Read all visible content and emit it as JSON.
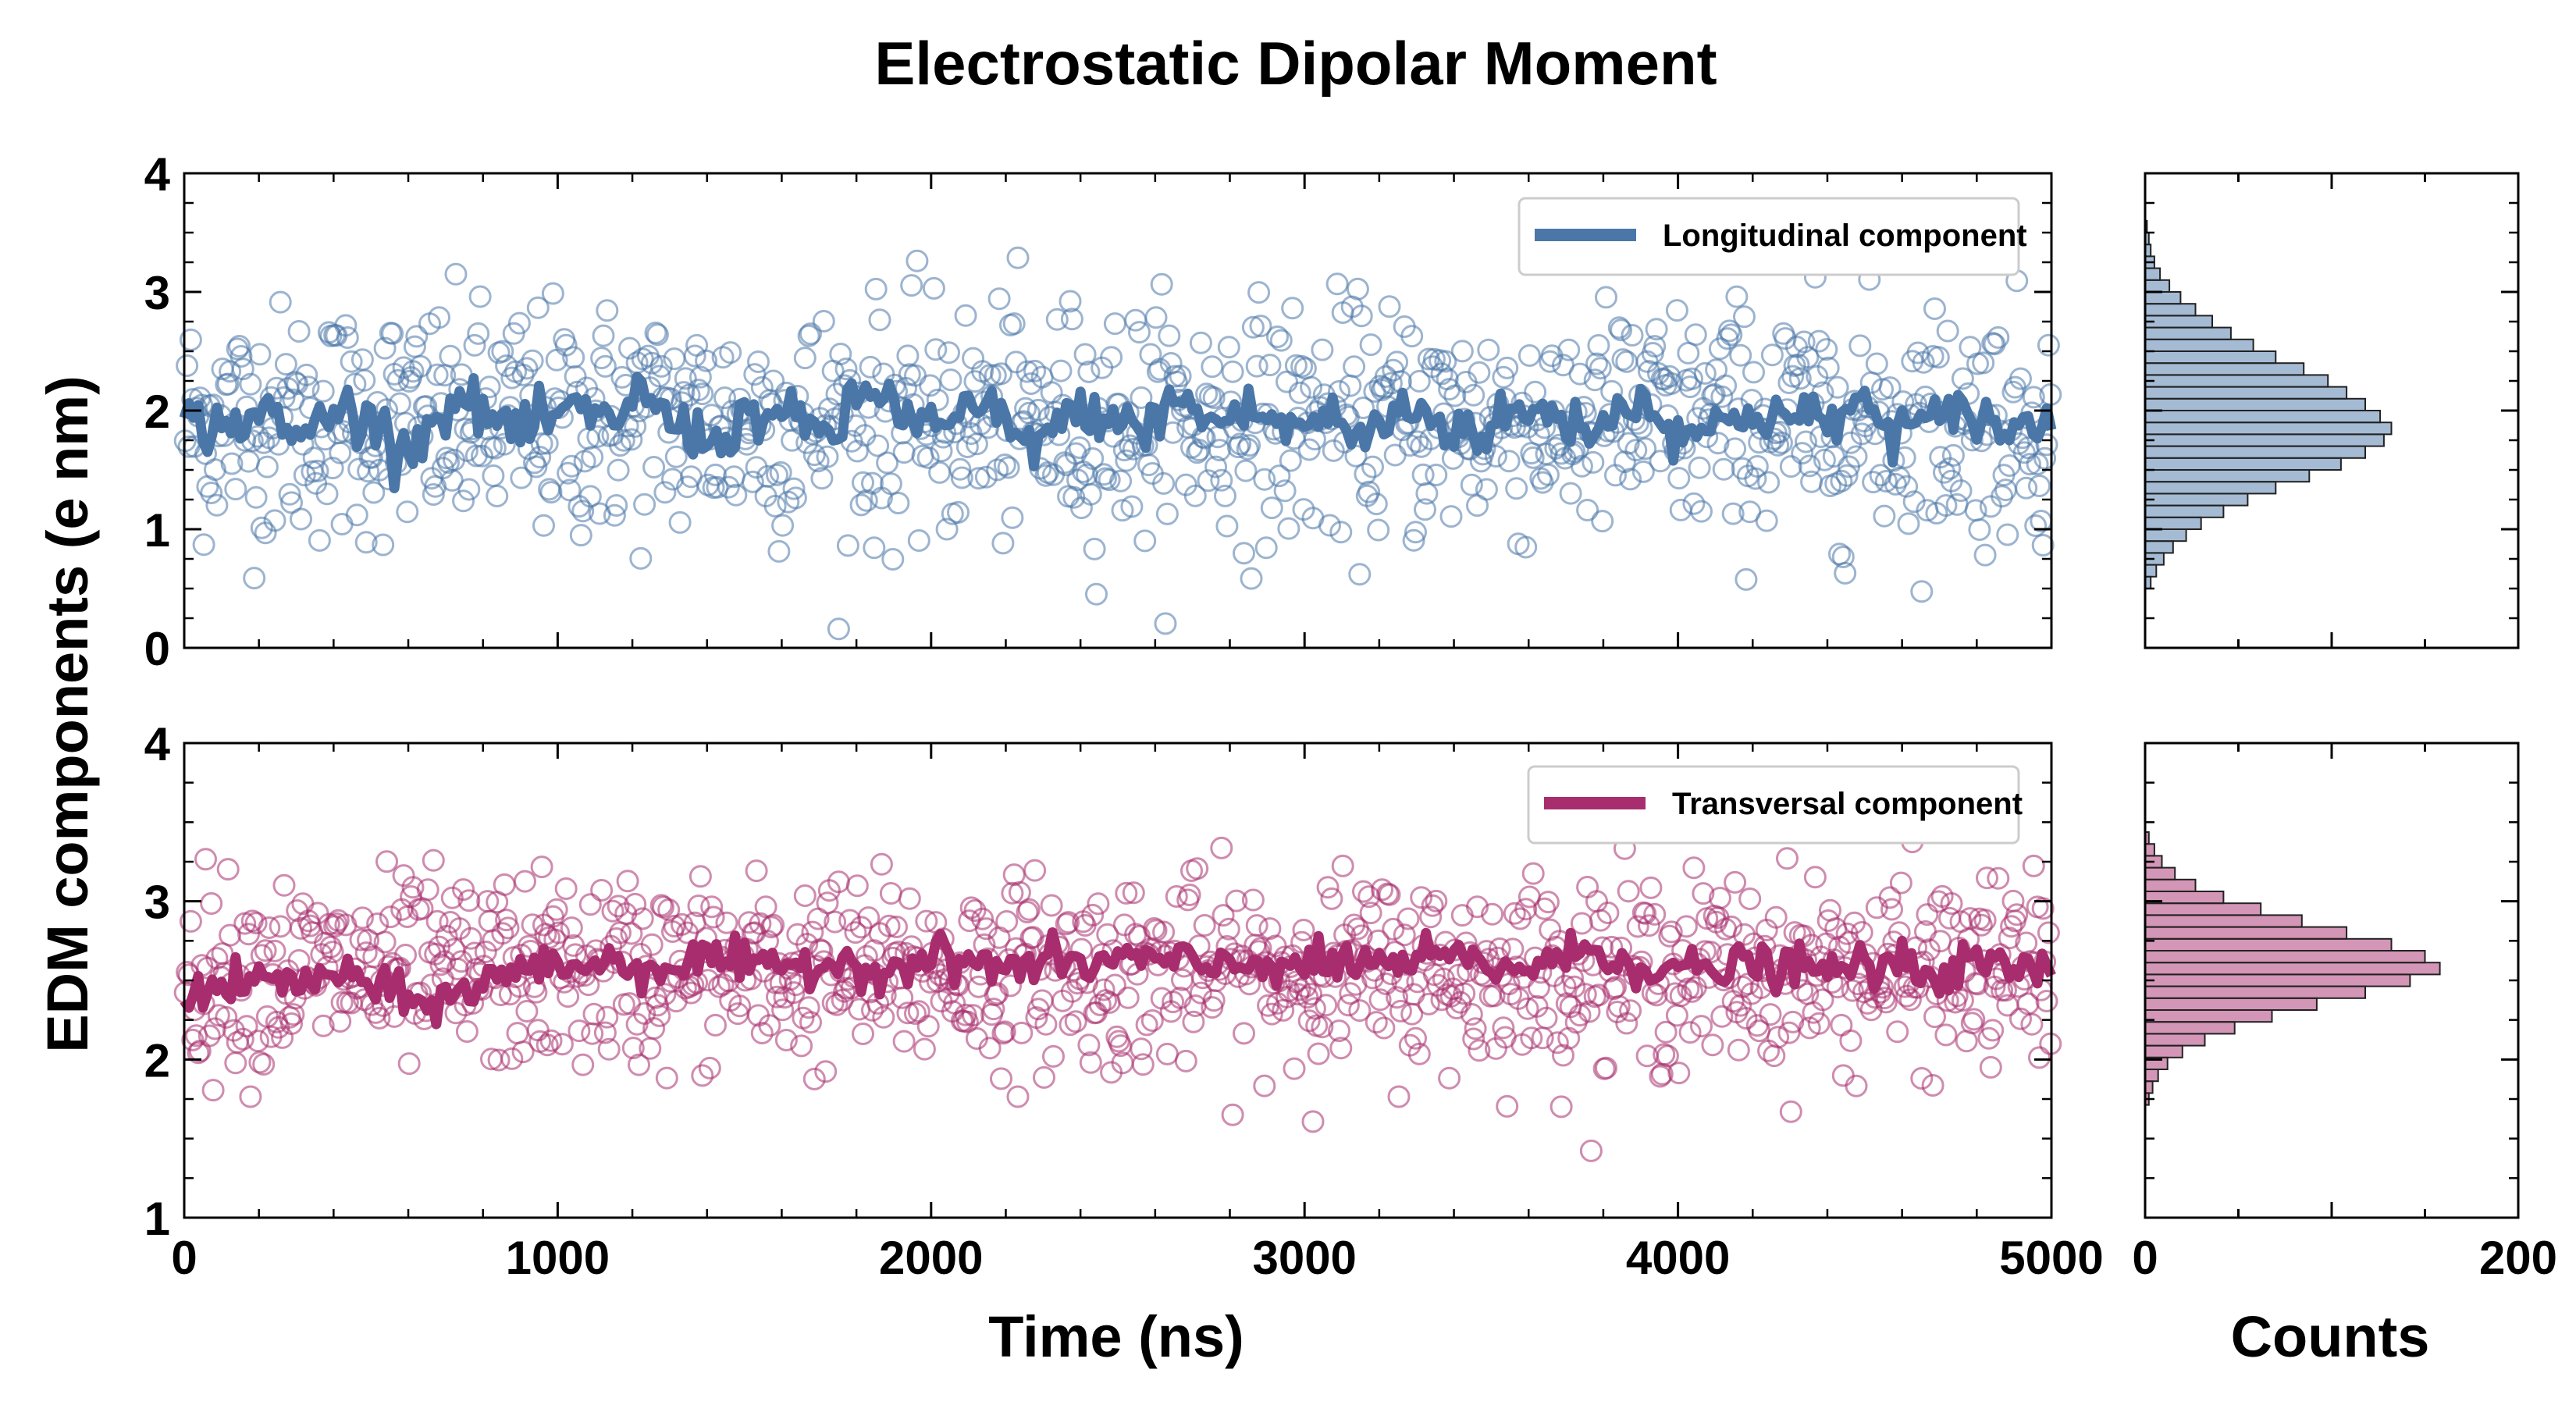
{
  "chart_data": {
    "type": "scatter",
    "title": "Electrostatic Dipolar Moment",
    "ylabel": "EDM components (e nm)",
    "xlabel": "Time (ns)",
    "hist_xlabel": "Counts",
    "xlim": [
      0,
      5000
    ],
    "xticks": [
      "0",
      "1000",
      "2000",
      "3000",
      "4000",
      "5000"
    ],
    "hist_xlim": [
      0,
      200
    ],
    "hist_xticks": [
      "0",
      "200"
    ],
    "grid": false,
    "legend_placement": "top-right",
    "panels": [
      {
        "series_name": "Longitudinal component",
        "color": "#4a77a8",
        "ylim": [
          0,
          4
        ],
        "yticks": [
          "0",
          "1",
          "2",
          "3",
          "4"
        ],
        "mean": 1.9,
        "spread": 0.5,
        "smooth_mean": [
          1.92,
          1.85,
          2.0,
          1.75,
          2.05,
          1.88,
          1.7,
          2.1,
          1.95,
          1.8,
          2.0,
          1.9,
          2.15,
          1.85,
          1.75,
          2.0,
          1.9,
          1.8,
          2.2,
          1.95,
          1.85,
          2.05,
          1.7,
          1.9,
          2.0,
          1.8,
          2.1,
          1.9,
          2.0,
          1.85,
          1.95,
          1.75,
          2.05,
          1.9,
          1.8,
          2.0,
          1.95,
          1.85,
          2.1,
          1.9,
          1.8,
          2.0,
          1.95,
          1.9,
          2.05,
          1.85,
          1.9,
          2.0,
          1.8,
          1.95
        ],
        "histogram": {
          "bin_centers": [
            0.55,
            0.65,
            0.75,
            0.85,
            0.95,
            1.05,
            1.15,
            1.25,
            1.35,
            1.45,
            1.55,
            1.65,
            1.75,
            1.85,
            1.95,
            2.05,
            2.15,
            2.25,
            2.35,
            2.45,
            2.55,
            2.65,
            2.75,
            2.85,
            2.95,
            3.05,
            3.15,
            3.25,
            3.35,
            3.45,
            3.55
          ],
          "counts": [
            3,
            6,
            10,
            15,
            22,
            30,
            42,
            55,
            70,
            88,
            105,
            118,
            128,
            132,
            126,
            118,
            108,
            98,
            85,
            70,
            58,
            46,
            36,
            27,
            19,
            13,
            8,
            5,
            3,
            2,
            1
          ]
        }
      },
      {
        "series_name": "Transversal component",
        "color": "#a82d6e",
        "ylim": [
          1,
          4
        ],
        "yticks": [
          "1",
          "2",
          "3",
          "4"
        ],
        "mean": 2.55,
        "spread": 0.3,
        "smooth_mean": [
          2.42,
          2.45,
          2.5,
          2.48,
          2.55,
          2.45,
          2.35,
          2.4,
          2.5,
          2.58,
          2.6,
          2.62,
          2.58,
          2.6,
          2.65,
          2.55,
          2.6,
          2.62,
          2.58,
          2.6,
          2.65,
          2.6,
          2.58,
          2.62,
          2.6,
          2.65,
          2.6,
          2.58,
          2.62,
          2.6,
          2.58,
          2.62,
          2.6,
          2.65,
          2.6,
          2.58,
          2.62,
          2.7,
          2.6,
          2.58,
          2.55,
          2.6,
          2.58,
          2.55,
          2.6,
          2.58,
          2.55,
          2.6,
          2.58,
          2.55
        ],
        "histogram": {
          "bin_centers": [
            1.75,
            1.825,
            1.9,
            1.975,
            2.05,
            2.125,
            2.2,
            2.275,
            2.35,
            2.425,
            2.5,
            2.575,
            2.65,
            2.725,
            2.8,
            2.875,
            2.95,
            3.025,
            3.1,
            3.175,
            3.25,
            3.325,
            3.4
          ],
          "counts": [
            2,
            4,
            7,
            12,
            20,
            32,
            48,
            68,
            92,
            118,
            142,
            158,
            150,
            132,
            108,
            84,
            62,
            42,
            27,
            16,
            9,
            5,
            2
          ]
        }
      }
    ]
  }
}
